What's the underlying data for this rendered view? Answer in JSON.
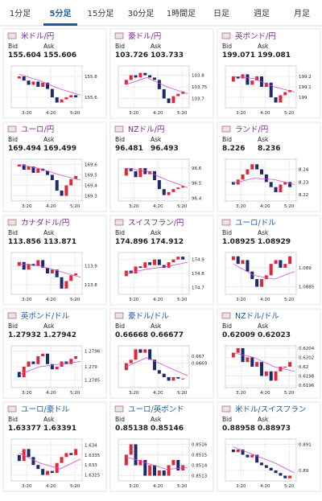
{
  "tabs": [
    "1分足",
    "5分足",
    "15分足",
    "30分足",
    "1時間足",
    "日足",
    "週足",
    "月足"
  ],
  "labels": {
    "bid": "Bid",
    "ask": "Ask"
  },
  "xticks": [
    "3:20",
    "4:20",
    "5:20"
  ],
  "cards": [
    {
      "title": "米ドル/円",
      "link_color": "#7a2d8c",
      "bid": 155.604,
      "ask": 155.606,
      "ylim": [
        155.5,
        155.9
      ],
      "yticks": [
        155.8,
        155.6
      ],
      "closes": [
        155.78,
        155.8,
        155.76,
        155.72,
        155.75,
        155.7,
        155.74,
        155.68,
        155.6,
        155.55,
        155.58,
        155.6,
        155.62,
        155.6
      ],
      "ma": [
        155.82,
        155.76,
        155.68,
        155.62
      ]
    },
    {
      "title": "豪ドル/円",
      "link_color": "#7a2d8c",
      "bid": 103.726,
      "ask": 103.733,
      "ylim": [
        103.66,
        103.84
      ],
      "yticks": [
        103.8,
        103.75,
        103.7
      ],
      "closes": [
        103.76,
        103.78,
        103.8,
        103.79,
        103.81,
        103.8,
        103.79,
        103.78,
        103.74,
        103.7,
        103.68,
        103.71,
        103.72,
        103.73
      ],
      "ma": [
        103.76,
        103.79,
        103.75,
        103.72
      ]
    },
    {
      "title": "英ポンド/円",
      "link_color": "#7a2d8c",
      "bid": 199.071,
      "ask": 199.081,
      "ylim": [
        198.9,
        199.3
      ],
      "yticks": [
        199.2,
        199.1,
        199
      ],
      "closes": [
        199.15,
        199.2,
        199.18,
        199.22,
        199.12,
        199.16,
        199.2,
        199.1,
        199.14,
        199,
        198.95,
        199.02,
        199.05,
        199.07
      ],
      "ma": [
        199.2,
        199.18,
        199.1,
        199.05
      ]
    },
    {
      "title": "ユーロ/円",
      "link_color": "#7a2d8c",
      "bid": 169.494,
      "ask": 169.499,
      "ylim": [
        169.25,
        169.65
      ],
      "yticks": [
        169.6,
        169.5,
        169.4,
        169.3
      ],
      "closes": [
        169.58,
        169.6,
        169.55,
        169.58,
        169.52,
        169.56,
        169.54,
        169.5,
        169.45,
        169.35,
        169.3,
        169.4,
        169.46,
        169.49
      ],
      "ma": [
        169.6,
        169.56,
        169.5,
        169.45
      ]
    },
    {
      "title": "NZドル/円",
      "link_color": "#7a2d8c",
      "bid": 96.481,
      "ask": 96.493,
      "ylim": [
        96.38,
        96.66
      ],
      "yticks": [
        96.6,
        96.5,
        96.4
      ],
      "closes": [
        96.55,
        96.6,
        96.58,
        96.54,
        96.6,
        96.56,
        96.58,
        96.52,
        96.46,
        96.42,
        96.44,
        96.46,
        96.47,
        96.48
      ],
      "ma": [
        96.6,
        96.58,
        96.52,
        96.47
      ]
    },
    {
      "title": "ランド/円",
      "link_color": "#7a2d8c",
      "bid": 8.226,
      "ask": 8.236,
      "ylim": [
        8.215,
        8.248
      ],
      "yticks": [
        8.24,
        8.23,
        8.22
      ],
      "closes": [
        8.23,
        8.228,
        8.232,
        8.236,
        8.24,
        8.244,
        8.24,
        8.236,
        8.23,
        8.226,
        8.222,
        8.228,
        8.23,
        8.226
      ],
      "ma": [
        8.229,
        8.233,
        8.232,
        8.228
      ]
    },
    {
      "title": "カナダドル/円",
      "link_color": "#7a2d8c",
      "bid": 113.856,
      "ask": 113.871,
      "ylim": [
        113.75,
        113.97
      ],
      "yticks": [
        113.9,
        113.8
      ],
      "closes": [
        113.9,
        113.92,
        113.88,
        113.91,
        113.9,
        113.93,
        113.89,
        113.86,
        113.88,
        113.84,
        113.78,
        113.82,
        113.85,
        113.86
      ],
      "ma": [
        113.91,
        113.9,
        113.87,
        113.84
      ]
    },
    {
      "title": "スイスフラン/円",
      "link_color": "#7a2d8c",
      "bid": 174.896,
      "ask": 174.912,
      "ylim": [
        174.65,
        174.95
      ],
      "yticks": [
        174.9,
        174.8,
        174.7
      ],
      "closes": [
        174.78,
        174.82,
        174.8,
        174.85,
        174.84,
        174.88,
        174.86,
        174.9,
        174.86,
        174.84,
        174.88,
        174.9,
        174.92,
        174.9
      ],
      "ma": [
        174.8,
        174.83,
        174.85,
        174.88
      ]
    },
    {
      "title": "ユーロ/ドル",
      "link_color": "#1a5aa6",
      "bid": 1.08925,
      "ask": 1.08929,
      "ylim": [
        1.0883,
        1.0894
      ],
      "yticks": [
        1.089,
        1.0885
      ],
      "closes": [
        1.0892,
        1.0893,
        1.0891,
        1.0892,
        1.0889,
        1.0887,
        1.0885,
        1.0887,
        1.0888,
        1.0891,
        1.0892,
        1.089,
        1.0891,
        1.0893
      ],
      "ma": [
        1.0891,
        1.0888,
        1.0887,
        1.0889
      ]
    },
    {
      "title": "英ポンド/ドル",
      "link_color": "#1a5aa6",
      "bid": 1.27932,
      "ask": 1.27942,
      "ylim": [
        1.2782,
        1.2798
      ],
      "yticks": [
        1.2796,
        1.279,
        1.2785
      ],
      "closes": [
        1.2788,
        1.2786,
        1.279,
        1.2792,
        1.2791,
        1.2794,
        1.2795,
        1.2791,
        1.2789,
        1.279,
        1.2792,
        1.2791,
        1.2793,
        1.2794
      ],
      "ma": [
        1.2787,
        1.279,
        1.2791,
        1.2792
      ]
    },
    {
      "title": "豪ドル/ドル",
      "link_color": "#1a5aa6",
      "bid": 0.66668,
      "ask": 0.66677,
      "ylim": [
        0.66655,
        0.66715
      ],
      "yticks": [
        0.667,
        0.6669
      ],
      "closes": [
        0.6668,
        0.6669,
        0.66695,
        0.6671,
        0.66705,
        0.6671,
        0.66695,
        0.6668,
        0.66675,
        0.6667,
        0.66665,
        0.6667,
        0.66668,
        0.66668
      ],
      "ma": [
        0.66685,
        0.66698,
        0.66685,
        0.66672
      ]
    },
    {
      "title": "NZドル/ドル",
      "link_color": "#1a5aa6",
      "bid": 0.62009,
      "ask": 0.62023,
      "ylim": [
        0.61955,
        0.62045
      ],
      "yticks": [
        0.6204,
        0.6202,
        0.62,
        0.6198,
        0.6196
      ],
      "closes": [
        0.6202,
        0.6203,
        0.6204,
        0.6201,
        0.6202,
        0.62,
        0.6201,
        0.6198,
        0.6199,
        0.6197,
        0.6199,
        0.62,
        0.62,
        0.6201
      ],
      "ma": [
        0.6203,
        0.6202,
        0.62,
        0.6199
      ]
    },
    {
      "title": "ユーロ/豪ドル",
      "link_color": "#1a5aa6",
      "bid": 1.63377,
      "ask": 1.63391,
      "ylim": [
        1.6322,
        1.6343
      ],
      "yticks": [
        1.634,
        1.6335,
        1.633,
        1.6325
      ],
      "closes": [
        1.6335,
        1.6332,
        1.6338,
        1.6334,
        1.633,
        1.6328,
        1.6325,
        1.6327,
        1.6326,
        1.6331,
        1.6334,
        1.6336,
        1.6335,
        1.6338
      ],
      "ma": [
        1.6336,
        1.6331,
        1.6328,
        1.6333
      ]
    },
    {
      "title": "ユーロ/英ポンド",
      "link_color": "#1a5aa6",
      "bid": 0.85138,
      "ask": 0.85146,
      "ylim": [
        0.85125,
        0.85165
      ],
      "yticks": [
        0.8516,
        0.8515,
        0.8514,
        0.8513
      ],
      "closes": [
        0.8514,
        0.8515,
        0.8516,
        0.8514,
        0.85145,
        0.8513,
        0.8514,
        0.8513,
        0.85135,
        0.8513,
        0.8514,
        0.85145,
        0.85135,
        0.8514
      ],
      "ma": [
        0.85148,
        0.85142,
        0.85136,
        0.85138
      ]
    },
    {
      "title": "米ドル/スイスフラン",
      "link_color": "#1a5aa6",
      "bid": 0.88958,
      "ask": 0.88973,
      "ylim": [
        0.8896,
        0.8912
      ],
      "yticks": [
        0.891,
        0.89
      ],
      "closes": [
        0.8908,
        0.8907,
        0.8908,
        0.8906,
        0.8905,
        0.8906,
        0.8903,
        0.8902,
        0.8901,
        0.89,
        0.8899,
        0.8898,
        0.8897,
        0.8898
      ],
      "ma": [
        0.8909,
        0.8906,
        0.8903,
        0.8899
      ]
    }
  ]
}
